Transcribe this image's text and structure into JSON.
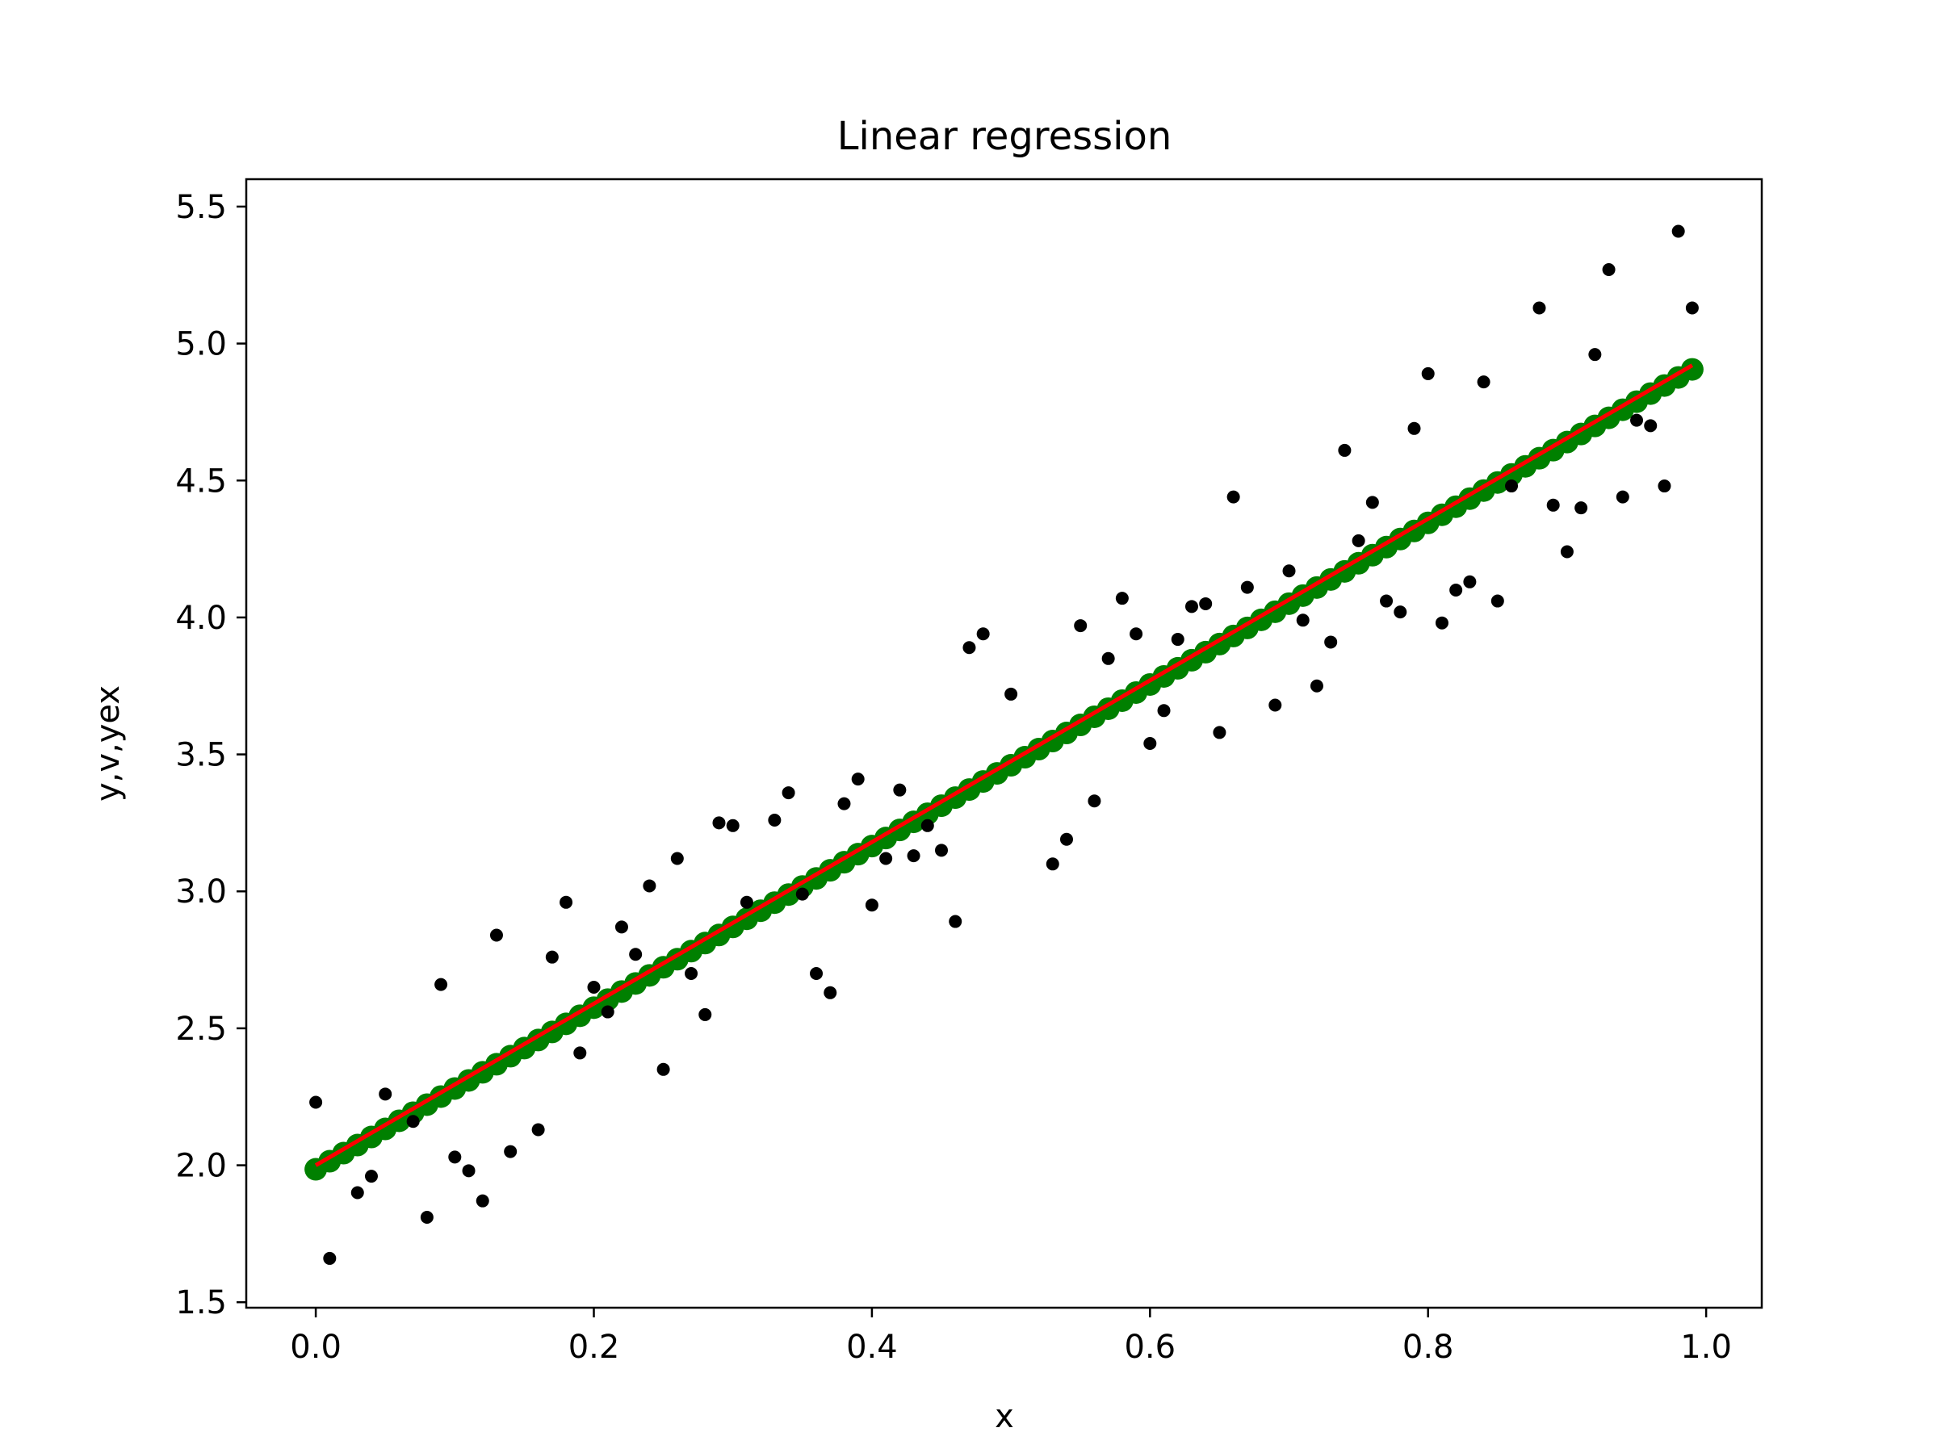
{
  "chart_data": {
    "type": "scatter",
    "title": "Linear regression",
    "xlabel": "x",
    "ylabel": "y,v,yex",
    "xlim": [
      -0.05,
      1.04
    ],
    "ylim": [
      1.48,
      5.6
    ],
    "xticks": [
      0.0,
      0.2,
      0.4,
      0.6,
      0.8,
      1.0
    ],
    "xtick_labels": [
      "0.0",
      "0.2",
      "0.4",
      "0.6",
      "0.8",
      "1.0"
    ],
    "yticks": [
      1.5,
      2.0,
      2.5,
      3.0,
      3.5,
      4.0,
      4.5,
      5.0,
      5.5
    ],
    "ytick_labels": [
      "1.5",
      "2.0",
      "2.5",
      "3.0",
      "3.5",
      "4.0",
      "4.5",
      "5.0",
      "5.5"
    ],
    "grid": false,
    "legend": "none",
    "fit": {
      "intercept": 2.0,
      "slope": 2.95,
      "x_start": 0.0,
      "x_end": 0.99,
      "x_step": 0.01
    },
    "series": [
      {
        "style": "black-dots",
        "color": "#000000",
        "x": [
          0.0,
          0.01,
          0.03,
          0.04,
          0.05,
          0.07,
          0.08,
          0.09,
          0.1,
          0.11,
          0.12,
          0.13,
          0.14,
          0.16,
          0.17,
          0.18,
          0.19,
          0.2,
          0.21,
          0.22,
          0.23,
          0.24,
          0.25,
          0.26,
          0.27,
          0.28,
          0.29,
          0.3,
          0.31,
          0.33,
          0.34,
          0.35,
          0.36,
          0.37,
          0.38,
          0.39,
          0.4,
          0.41,
          0.42,
          0.43,
          0.44,
          0.45,
          0.46,
          0.47,
          0.48,
          0.5,
          0.53,
          0.54,
          0.55,
          0.56,
          0.57,
          0.58,
          0.59,
          0.6,
          0.61,
          0.62,
          0.63,
          0.64,
          0.65,
          0.66,
          0.67,
          0.69,
          0.7,
          0.71,
          0.72,
          0.73,
          0.74,
          0.75,
          0.76,
          0.77,
          0.78,
          0.79,
          0.8,
          0.81,
          0.82,
          0.83,
          0.84,
          0.85,
          0.86,
          0.88,
          0.89,
          0.9,
          0.91,
          0.92,
          0.93,
          0.94,
          0.95,
          0.96,
          0.97,
          0.98,
          0.99
        ],
        "y": [
          2.23,
          1.66,
          1.9,
          1.96,
          2.26,
          2.16,
          1.81,
          2.66,
          2.03,
          1.98,
          1.87,
          2.84,
          2.05,
          2.13,
          2.76,
          2.96,
          2.41,
          2.65,
          2.56,
          2.87,
          2.77,
          3.02,
          2.35,
          3.12,
          2.7,
          2.55,
          3.25,
          3.24,
          2.96,
          3.26,
          3.36,
          2.99,
          2.7,
          2.63,
          3.32,
          3.41,
          2.95,
          3.12,
          3.37,
          3.13,
          3.24,
          3.15,
          2.89,
          3.89,
          3.94,
          3.72,
          3.1,
          3.19,
          3.97,
          3.33,
          3.85,
          4.07,
          3.94,
          3.54,
          3.66,
          3.92,
          4.04,
          4.05,
          3.58,
          4.44,
          4.11,
          3.68,
          4.17,
          3.99,
          3.75,
          3.91,
          4.61,
          4.28,
          4.42,
          4.06,
          4.02,
          4.69,
          4.89,
          3.98,
          4.1,
          4.13,
          4.86,
          4.06,
          4.48,
          5.13,
          4.41,
          4.24,
          4.4,
          4.96,
          5.27,
          4.44,
          4.72,
          4.7,
          4.48,
          5.41,
          5.13
        ]
      },
      {
        "style": "green-markers",
        "color": "#008000"
      },
      {
        "style": "red-line",
        "color": "#ff0000"
      }
    ]
  }
}
